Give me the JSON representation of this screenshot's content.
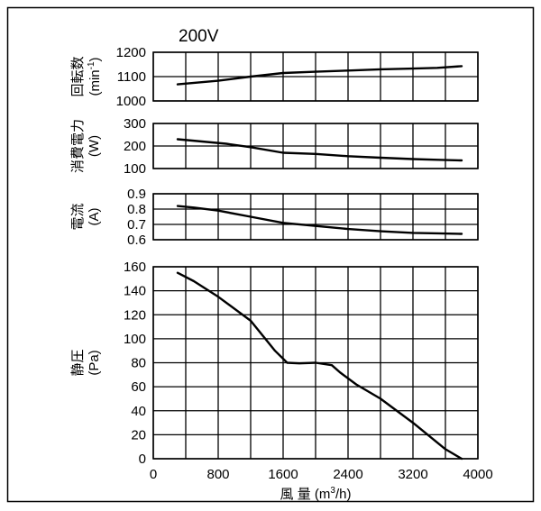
{
  "chart_data": [
    {
      "type": "line",
      "title": "200V",
      "ylabel": "回転数 (min-1)",
      "ylabel_lines": [
        "回転数",
        "(min",
        "-1",
        ")"
      ],
      "ylim": [
        1000,
        1200
      ],
      "yticks": [
        1000,
        1100,
        1200
      ],
      "xlim": [
        0,
        4000
      ],
      "grid": true,
      "series": [
        {
          "x": [
            300,
            800,
            1200,
            1600,
            2000,
            2400,
            2800,
            3200,
            3500,
            3800
          ],
          "y": [
            1068,
            1083,
            1100,
            1115,
            1120,
            1125,
            1130,
            1133,
            1136,
            1143
          ]
        }
      ]
    },
    {
      "type": "line",
      "ylabel": "消費電力 (W)",
      "ylabel_lines": [
        "消費電力",
        "(W)"
      ],
      "ylim": [
        100,
        300
      ],
      "yticks": [
        100,
        200,
        300
      ],
      "xlim": [
        0,
        4000
      ],
      "grid": true,
      "series": [
        {
          "x": [
            300,
            600,
            900,
            1200,
            1600,
            2000,
            2400,
            2800,
            3200,
            3500,
            3800
          ],
          "y": [
            230,
            220,
            210,
            195,
            170,
            165,
            155,
            148,
            142,
            139,
            136
          ]
        }
      ]
    },
    {
      "type": "line",
      "ylabel": "電流 (A)",
      "ylabel_lines": [
        "電流",
        "(A)"
      ],
      "ylim": [
        0.6,
        0.9
      ],
      "yticks": [
        0.6,
        0.7,
        0.8,
        0.9
      ],
      "xlim": [
        0,
        4000
      ],
      "grid": true,
      "series": [
        {
          "x": [
            300,
            500,
            800,
            1200,
            1600,
            2000,
            2400,
            2800,
            3200,
            3500,
            3800
          ],
          "y": [
            0.82,
            0.81,
            0.79,
            0.75,
            0.71,
            0.69,
            0.67,
            0.655,
            0.645,
            0.642,
            0.638
          ]
        }
      ]
    },
    {
      "type": "line",
      "ylabel": "静圧 (Pa)",
      "ylabel_lines": [
        "静圧",
        "(Pa)"
      ],
      "xlabel": "風量 (m3/h)",
      "xlabel_parts": [
        "風 量 (m",
        "3",
        "/h)"
      ],
      "ylim": [
        0,
        160
      ],
      "yticks": [
        0,
        20,
        40,
        60,
        80,
        100,
        120,
        140,
        160
      ],
      "xlim": [
        0,
        4000
      ],
      "xticks": [
        0,
        800,
        1600,
        2400,
        3200,
        4000
      ],
      "grid": true,
      "series": [
        {
          "x": [
            300,
            500,
            800,
            1200,
            1500,
            1650,
            1800,
            2000,
            2200,
            2300,
            2500,
            2800,
            3200,
            3600,
            3800
          ],
          "y": [
            155,
            148,
            135,
            115,
            90,
            80,
            79.5,
            80,
            78,
            72,
            62,
            50,
            30,
            8,
            0
          ]
        }
      ]
    }
  ]
}
